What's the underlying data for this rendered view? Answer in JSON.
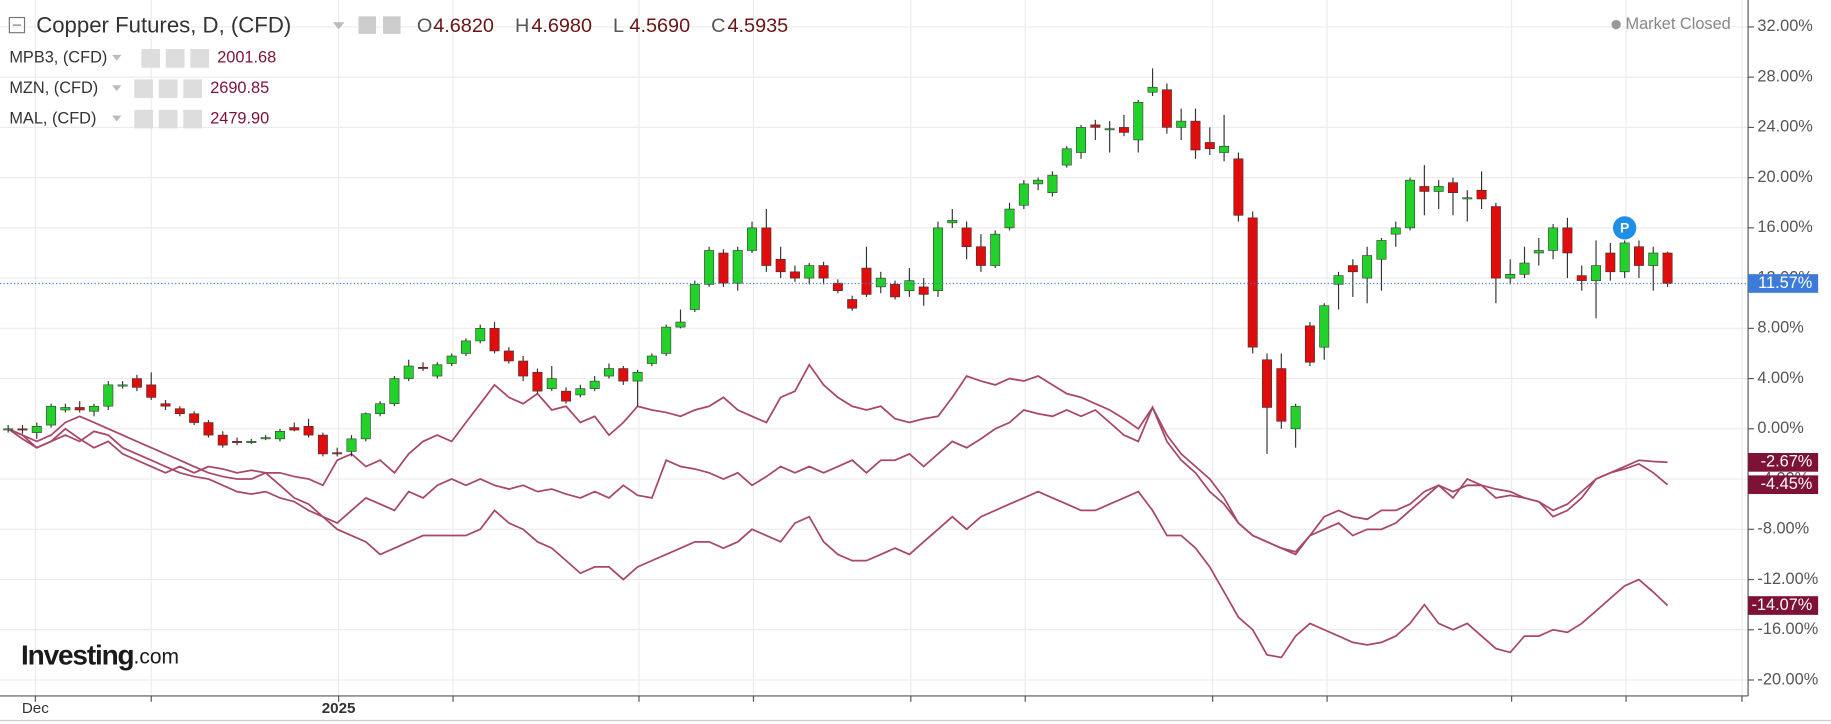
{
  "chart_data": {
    "type": "candlestick",
    "title": "Copper Futures, D, (CFD)",
    "ohlc_legend": [
      {
        "label": "O",
        "value": "4.6820"
      },
      {
        "label": "H",
        "value": "4.6980"
      },
      {
        "label": "L",
        "value": "4.5690"
      },
      {
        "label": "C",
        "value": "4.5935"
      }
    ],
    "status": "Market Closed",
    "marker": "P",
    "watermark": {
      "brand": "Investing",
      "suffix": ".com"
    },
    "up_color": "#22d12a",
    "down_color": "#e10c0c",
    "last_label": {
      "value": 11.57,
      "label": "11.57%"
    },
    "last_color": "#3d7bd9",
    "candles": {
      "open": [
        0.0,
        0.0,
        -0.3,
        0.3,
        1.5,
        1.7,
        1.4,
        1.8,
        3.4,
        4.0,
        3.5,
        2.0,
        1.6,
        1.2,
        0.5,
        -0.5,
        -1.0,
        -1.1,
        -0.8,
        -0.8,
        0.1,
        0.2,
        -0.5,
        -1.9,
        -1.8,
        -0.8,
        1.2,
        2.0,
        4.0,
        4.9,
        4.2,
        5.2,
        6.0,
        7.0,
        8.0,
        6.2,
        5.4,
        4.5,
        3.2,
        3.0,
        2.7,
        3.2,
        4.2,
        4.8,
        3.8,
        5.2,
        6.0,
        8.1,
        9.5,
        11.5,
        14.0,
        11.6,
        14.2,
        16.0,
        13.5,
        12.5,
        12.0,
        13.0,
        11.6,
        10.3,
        12.8,
        11.3,
        11.5,
        11.0,
        11.3,
        11.0,
        16.4,
        16.0,
        14.5,
        13.0,
        16.0,
        17.8,
        19.5,
        18.8,
        21.0,
        22.0,
        24.2,
        23.8,
        24.0,
        23.0,
        26.8,
        27.0,
        24.0,
        24.5,
        22.8,
        22.0,
        21.5,
        16.8,
        5.5,
        4.8,
        0.0,
        8.2,
        6.5,
        11.5,
        13.0,
        12.0,
        13.5,
        15.5,
        16.0,
        19.3,
        18.9,
        19.6,
        18.3,
        19.0,
        17.7,
        12.0,
        12.3,
        14.0,
        14.2,
        16.0,
        12.2,
        11.8,
        14.0,
        12.5,
        14.5,
        13.0,
        14.0
      ],
      "high": [
        0.3,
        0.3,
        0.5,
        2.0,
        2.0,
        2.2,
        2.0,
        3.8,
        3.8,
        4.3,
        4.5,
        2.3,
        1.8,
        1.4,
        0.7,
        -0.2,
        -0.7,
        -0.8,
        -0.5,
        0.0,
        0.5,
        0.8,
        -0.3,
        -1.5,
        -0.5,
        1.3,
        2.2,
        4.2,
        5.5,
        5.3,
        5.3,
        6.0,
        7.2,
        8.3,
        8.5,
        6.5,
        5.8,
        4.8,
        5.0,
        3.3,
        3.5,
        4.2,
        5.2,
        5.0,
        4.7,
        6.0,
        8.3,
        9.5,
        11.8,
        14.5,
        14.3,
        14.5,
        16.5,
        17.5,
        14.5,
        13.0,
        13.2,
        13.3,
        11.9,
        10.6,
        14.5,
        12.5,
        11.8,
        12.8,
        12.0,
        16.5,
        17.5,
        16.5,
        15.5,
        15.8,
        18.0,
        19.8,
        20.0,
        20.5,
        22.5,
        24.2,
        24.6,
        24.5,
        25.0,
        26.2,
        28.7,
        27.5,
        25.5,
        25.5,
        24.0,
        25.0,
        22.0,
        17.3,
        6.0,
        6.0,
        2.0,
        8.5,
        10.0,
        12.5,
        13.5,
        14.5,
        15.2,
        16.5,
        20.0,
        21.0,
        19.8,
        20.0,
        19.0,
        20.5,
        18.0,
        13.5,
        14.5,
        15.2,
        16.3,
        16.8,
        13.0,
        15.0,
        14.8,
        15.0,
        15.0,
        14.5,
        14.1
      ],
      "low": [
        -0.3,
        -0.4,
        -0.8,
        0.1,
        1.3,
        1.3,
        1.0,
        1.5,
        3.2,
        3.0,
        2.3,
        1.5,
        1.0,
        0.3,
        -0.7,
        -1.5,
        -1.3,
        -1.2,
        -0.9,
        -1.0,
        -0.2,
        -0.7,
        -2.2,
        -2.2,
        -2.2,
        -1.0,
        1.0,
        1.8,
        3.8,
        4.6,
        4.0,
        5.0,
        5.8,
        6.8,
        6.0,
        5.2,
        3.8,
        2.8,
        3.0,
        2.0,
        2.5,
        3.0,
        4.0,
        3.5,
        1.8,
        5.0,
        5.8,
        8.0,
        9.3,
        11.3,
        11.3,
        11.0,
        14.0,
        12.5,
        12.0,
        11.7,
        11.5,
        11.5,
        10.8,
        9.4,
        10.5,
        10.8,
        10.3,
        10.5,
        9.8,
        10.5,
        16.0,
        13.5,
        12.5,
        12.8,
        15.8,
        17.5,
        19.0,
        18.5,
        20.8,
        21.5,
        23.0,
        22.0,
        23.3,
        22.0,
        26.5,
        23.5,
        23.0,
        21.5,
        21.8,
        21.3,
        16.5,
        6.0,
        -2.0,
        0.0,
        -1.5,
        5.0,
        5.5,
        9.5,
        10.5,
        10.0,
        11.0,
        14.5,
        15.8,
        17.0,
        17.5,
        17.0,
        16.5,
        17.5,
        10.0,
        11.5,
        12.0,
        13.0,
        13.5,
        12.0,
        11.0,
        8.8,
        11.8,
        12.0,
        12.0,
        11.0,
        11.3
      ],
      "close": [
        0.0,
        -0.1,
        0.2,
        1.8,
        1.7,
        1.5,
        1.8,
        3.5,
        3.5,
        3.3,
        2.5,
        1.8,
        1.2,
        0.5,
        -0.5,
        -1.3,
        -1.1,
        -1.0,
        -0.7,
        -0.2,
        -0.1,
        -0.5,
        -2.0,
        -2.0,
        -0.8,
        1.2,
        2.0,
        4.0,
        5.0,
        4.8,
        5.1,
        5.8,
        7.0,
        8.0,
        6.2,
        5.4,
        4.2,
        3.0,
        4.0,
        2.2,
        3.2,
        3.8,
        4.8,
        3.8,
        4.5,
        5.8,
        8.1,
        8.5,
        11.5,
        14.2,
        11.6,
        14.2,
        16.0,
        13.0,
        12.5,
        12.0,
        13.0,
        12.0,
        11.0,
        9.6,
        10.7,
        12.0,
        10.5,
        11.8,
        10.7,
        16.0,
        16.6,
        14.5,
        13.0,
        15.5,
        17.5,
        19.5,
        19.8,
        20.2,
        22.3,
        24.0,
        24.0,
        23.9,
        23.6,
        26.0,
        27.2,
        24.0,
        24.5,
        22.2,
        22.3,
        22.5,
        17.0,
        6.5,
        1.7,
        0.6,
        1.8,
        5.3,
        9.8,
        12.2,
        12.5,
        13.8,
        15.0,
        16.0,
        19.8,
        18.9,
        19.3,
        18.8,
        18.4,
        18.3,
        12.0,
        12.3,
        13.2,
        14.2,
        16.0,
        14.0,
        11.8,
        13.0,
        12.5,
        14.8,
        13.0,
        14.0,
        11.57
      ]
    },
    "series": [
      {
        "name": "MPB3, (CFD)",
        "price": "2001.68",
        "color": "#a8476a",
        "label_color": "#7d1236",
        "last_label": {
          "value": -14.07,
          "label": "-14.07%"
        },
        "values": [
          0,
          -0.5,
          -1.5,
          -1.0,
          0,
          -0.8,
          -1.5,
          -1.0,
          -2.0,
          -2.5,
          -3.0,
          -3.5,
          -3.0,
          -3.5,
          -3.0,
          -3.2,
          -3.5,
          -3.3,
          -3.5,
          -4.5,
          -5.5,
          -6.0,
          -7.0,
          -8.0,
          -8.5,
          -9.0,
          -10.0,
          -9.5,
          -9.0,
          -8.5,
          -8.5,
          -8.5,
          -8.5,
          -8.0,
          -6.5,
          -7.5,
          -8.0,
          -9.0,
          -9.5,
          -10.5,
          -11.5,
          -11.0,
          -11.0,
          -12.0,
          -11.0,
          -10.5,
          -10.0,
          -9.5,
          -9.0,
          -9.0,
          -9.5,
          -9.0,
          -8.0,
          -8.5,
          -9.0,
          -7.5,
          -7.0,
          -9.0,
          -10.0,
          -10.5,
          -10.5,
          -10.0,
          -9.5,
          -10.0,
          -9.0,
          -8.0,
          -7.0,
          -8.0,
          -7.0,
          -6.5,
          -6.0,
          -5.5,
          -5.0,
          -5.5,
          -6.0,
          -6.5,
          -6.5,
          -6.0,
          -5.5,
          -5.0,
          -6.5,
          -8.5,
          -8.5,
          -9.5,
          -11.0,
          -13.0,
          -15.0,
          -16.0,
          -18.0,
          -18.2,
          -16.5,
          -15.5,
          -16.0,
          -16.5,
          -17.0,
          -17.2,
          -17.0,
          -16.5,
          -15.5,
          -14.0,
          -15.5,
          -16.0,
          -15.5,
          -16.5,
          -17.5,
          -17.8,
          -16.5,
          -16.5,
          -16.0,
          -16.2,
          -15.5,
          -14.5,
          -13.5,
          -12.5,
          -12.0,
          -13.0,
          -14.07
        ]
      },
      {
        "name": "MZN, (CFD)",
        "price": "2690.85",
        "color": "#a8476a",
        "label_color": "#7d1236",
        "last_label": {
          "value": -2.67,
          "label": "-2.67%"
        },
        "values": [
          0,
          -0.5,
          -1.0,
          -0.5,
          0.5,
          1.0,
          0.5,
          0,
          -0.5,
          -1.0,
          -1.5,
          -2.0,
          -2.5,
          -3.0,
          -3.5,
          -3.8,
          -4.0,
          -4.0,
          -3.5,
          -3.5,
          -3.8,
          -4.0,
          -4.5,
          -2.5,
          -2.0,
          -3.0,
          -2.5,
          -3.5,
          -2.0,
          -1.0,
          -0.5,
          -1.0,
          0.5,
          2.0,
          3.5,
          2.5,
          2.0,
          2.8,
          1.5,
          1.8,
          0.5,
          1.0,
          -0.5,
          0.5,
          1.8,
          1.5,
          1.3,
          1.0,
          1.5,
          1.8,
          2.5,
          1.5,
          1.0,
          0.5,
          2.5,
          3.0,
          5.1,
          3.5,
          2.5,
          1.8,
          1.5,
          1.8,
          0.8,
          0.5,
          0.8,
          1.0,
          2.5,
          4.2,
          3.8,
          3.5,
          4.0,
          3.8,
          4.2,
          3.5,
          2.8,
          2.5,
          2.0,
          1.5,
          0.8,
          0,
          1.7,
          -0.5,
          -2.0,
          -3.0,
          -4.0,
          -5.5,
          -7.5,
          -8.5,
          -9.0,
          -9.5,
          -9.8,
          -8.5,
          -7.0,
          -6.5,
          -7.0,
          -7.2,
          -6.5,
          -6.5,
          -6.0,
          -5.0,
          -4.5,
          -5.5,
          -4.0,
          -4.5,
          -4.8,
          -5.0,
          -5.5,
          -5.8,
          -6.5,
          -6.0,
          -5.0,
          -4.0,
          -3.5,
          -3.0,
          -2.5,
          -2.6,
          -2.67
        ]
      },
      {
        "name": "MAL, (CFD)",
        "price": "2479.90",
        "color": "#a8476a",
        "label_color": "#7d1236",
        "last_label": {
          "value": -4.45,
          "label": "-4.45%"
        },
        "values": [
          0,
          -0.8,
          -1.5,
          -1.0,
          -0.5,
          -1.0,
          -0.2,
          -0.5,
          -1.5,
          -2.0,
          -2.5,
          -3.0,
          -3.5,
          -3.8,
          -4.0,
          -4.5,
          -5.0,
          -5.2,
          -5.0,
          -5.5,
          -5.8,
          -6.5,
          -7.0,
          -7.5,
          -6.5,
          -5.5,
          -6.0,
          -6.5,
          -5.0,
          -5.5,
          -4.5,
          -4.0,
          -4.5,
          -4.0,
          -4.5,
          -4.8,
          -4.5,
          -5.0,
          -4.8,
          -5.2,
          -5.5,
          -5.0,
          -5.5,
          -4.5,
          -5.3,
          -5.5,
          -2.5,
          -3.0,
          -3.2,
          -3.5,
          -4.0,
          -3.5,
          -4.5,
          -3.8,
          -3.0,
          -3.5,
          -3.0,
          -3.5,
          -3.0,
          -2.5,
          -3.5,
          -2.5,
          -2.5,
          -2.0,
          -3.0,
          -2.0,
          -1.0,
          -1.5,
          -0.8,
          0,
          0.5,
          1.5,
          1.2,
          1.0,
          1.5,
          1.0,
          1.5,
          0.5,
          -0.5,
          -1.0,
          1.7,
          -1.0,
          -2.5,
          -3.5,
          -5.0,
          -6.0,
          -7.5,
          -8.5,
          -9.0,
          -9.5,
          -10.0,
          -8.5,
          -8.0,
          -7.5,
          -8.5,
          -8.0,
          -8.0,
          -7.5,
          -6.5,
          -5.5,
          -4.5,
          -5.0,
          -4.5,
          -4.5,
          -5.5,
          -5.3,
          -5.5,
          -5.8,
          -7.0,
          -6.5,
          -5.5,
          -4.0,
          -3.5,
          -3.2,
          -2.8,
          -3.5,
          -4.45
        ]
      }
    ],
    "marker_at": {
      "index": 113,
      "value": 16.0
    },
    "xlim": [
      -0.571,
      121.63
    ],
    "xticks": [
      {
        "value": 1.9,
        "label": "Dec"
      },
      {
        "value": 23.1,
        "label": "2025"
      }
    ],
    "xgrid": [
      10.0,
      31.1,
      44.1,
      52.1,
      63.1,
      71.1,
      84.2,
      92.2,
      105.1,
      113.1,
      121.2
    ],
    "ylim": [
      -20.9,
      33.4
    ],
    "yticks": [
      {
        "value": 32,
        "label": "32.00%"
      },
      {
        "value": 28,
        "label": "28.00%"
      },
      {
        "value": 24,
        "label": "24.00%"
      },
      {
        "value": 20,
        "label": "20.00%"
      },
      {
        "value": 16,
        "label": "16.00%"
      },
      {
        "value": 12,
        "label": "12.00%"
      },
      {
        "value": 8,
        "label": "8.00%"
      },
      {
        "value": 4,
        "label": "4.00%"
      },
      {
        "value": 0,
        "label": "0.00%"
      },
      {
        "value": -4,
        "label": "-4.00%"
      },
      {
        "value": -8,
        "label": "-8.00%"
      },
      {
        "value": -12,
        "label": "-12.00%"
      },
      {
        "value": -16,
        "label": "-16.00%"
      },
      {
        "value": -20,
        "label": "-20.00%"
      }
    ],
    "grid": true
  }
}
